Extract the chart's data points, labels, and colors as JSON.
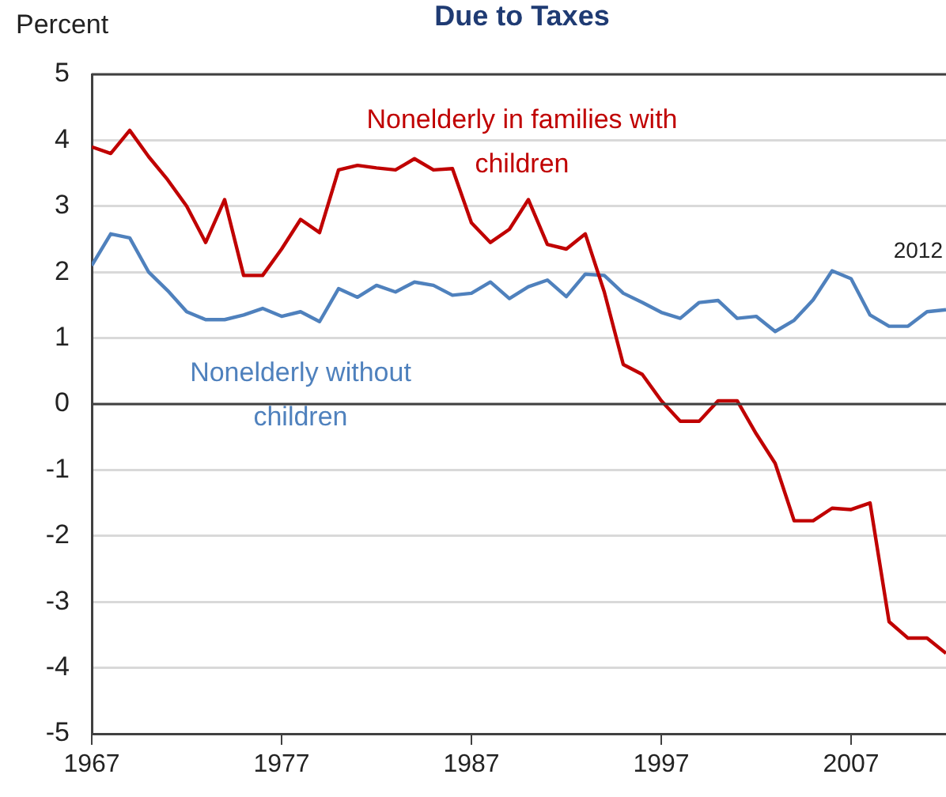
{
  "chart_data": {
    "type": "line",
    "title": "Due to Taxes",
    "ylabel": "Percent",
    "x": [
      1967,
      1968,
      1969,
      1970,
      1971,
      1972,
      1973,
      1974,
      1975,
      1976,
      1977,
      1978,
      1979,
      1980,
      1981,
      1982,
      1983,
      1984,
      1985,
      1986,
      1987,
      1988,
      1989,
      1990,
      1991,
      1992,
      1993,
      1994,
      1995,
      1996,
      1997,
      1998,
      1999,
      2000,
      2001,
      2002,
      2003,
      2004,
      2005,
      2006,
      2007,
      2008,
      2009,
      2010,
      2011,
      2012
    ],
    "series": [
      {
        "name": "Nonelderly in families with children",
        "color": "#c00000",
        "values": [
          3.9,
          3.8,
          4.15,
          3.75,
          3.4,
          3.0,
          2.45,
          3.1,
          1.95,
          1.95,
          2.35,
          2.8,
          2.6,
          3.55,
          3.62,
          3.58,
          3.55,
          3.72,
          3.55,
          3.57,
          2.75,
          2.45,
          2.65,
          3.1,
          2.42,
          2.35,
          2.58,
          1.7,
          0.6,
          0.45,
          0.05,
          -0.26,
          -0.26,
          0.05,
          0.05,
          -0.45,
          -0.9,
          -1.77,
          -1.77,
          -1.58,
          -1.6,
          -1.5,
          -3.3,
          -3.55,
          -3.55,
          -3.78
        ]
      },
      {
        "name": "Nonelderly without children",
        "color": "#4f81bd",
        "values": [
          2.1,
          2.58,
          2.52,
          2.0,
          1.72,
          1.4,
          1.28,
          1.28,
          1.35,
          1.45,
          1.33,
          1.4,
          1.25,
          1.75,
          1.62,
          1.8,
          1.7,
          1.85,
          1.8,
          1.65,
          1.68,
          1.85,
          1.6,
          1.78,
          1.88,
          1.63,
          1.97,
          1.95,
          1.68,
          1.54,
          1.39,
          1.3,
          1.54,
          1.57,
          1.3,
          1.33,
          1.1,
          1.27,
          1.58,
          2.02,
          1.9,
          1.35,
          1.18,
          1.18,
          1.4,
          1.43
        ]
      }
    ],
    "xlim": [
      1967,
      2012
    ],
    "xticks": [
      1967,
      1977,
      1987,
      1997,
      2007
    ],
    "ylim": [
      -5,
      5
    ],
    "yticks": [
      -5,
      -4,
      -3,
      -2,
      -1,
      0,
      1,
      2,
      3,
      4,
      5
    ],
    "grid": "y",
    "legend": false,
    "marker": "none",
    "line_style": "solid",
    "ref_lines": [
      {
        "axis": "y",
        "value": 0,
        "color": "#404040"
      }
    ],
    "annotations": [
      "2012"
    ]
  }
}
